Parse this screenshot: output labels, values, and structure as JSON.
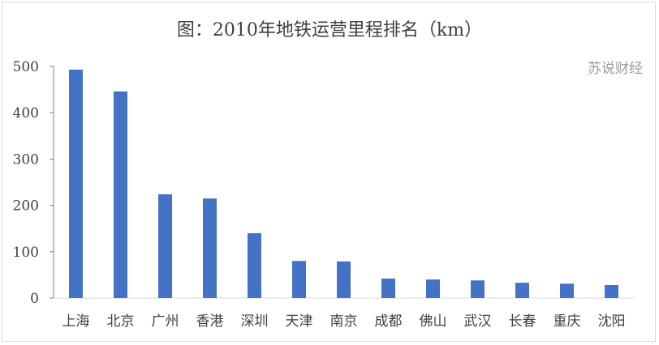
{
  "chart_data": {
    "type": "bar",
    "title": "图：2010年地铁运营里程排名（km）",
    "xlabel": "",
    "ylabel": "",
    "categories": [
      "上海",
      "北京",
      "广州",
      "香港",
      "深圳",
      "天津",
      "南京",
      "成都",
      "佛山",
      "武汉",
      "长春",
      "重庆",
      "沈阳"
    ],
    "values": [
      493,
      446,
      224,
      215,
      140,
      80,
      79,
      42,
      40,
      38,
      33,
      31,
      28
    ],
    "ylim": [
      0,
      500
    ],
    "yticks": [
      0,
      100,
      200,
      300,
      400,
      500
    ],
    "grid": false,
    "bar_color": "#4472c4"
  },
  "watermark": "苏说财经"
}
